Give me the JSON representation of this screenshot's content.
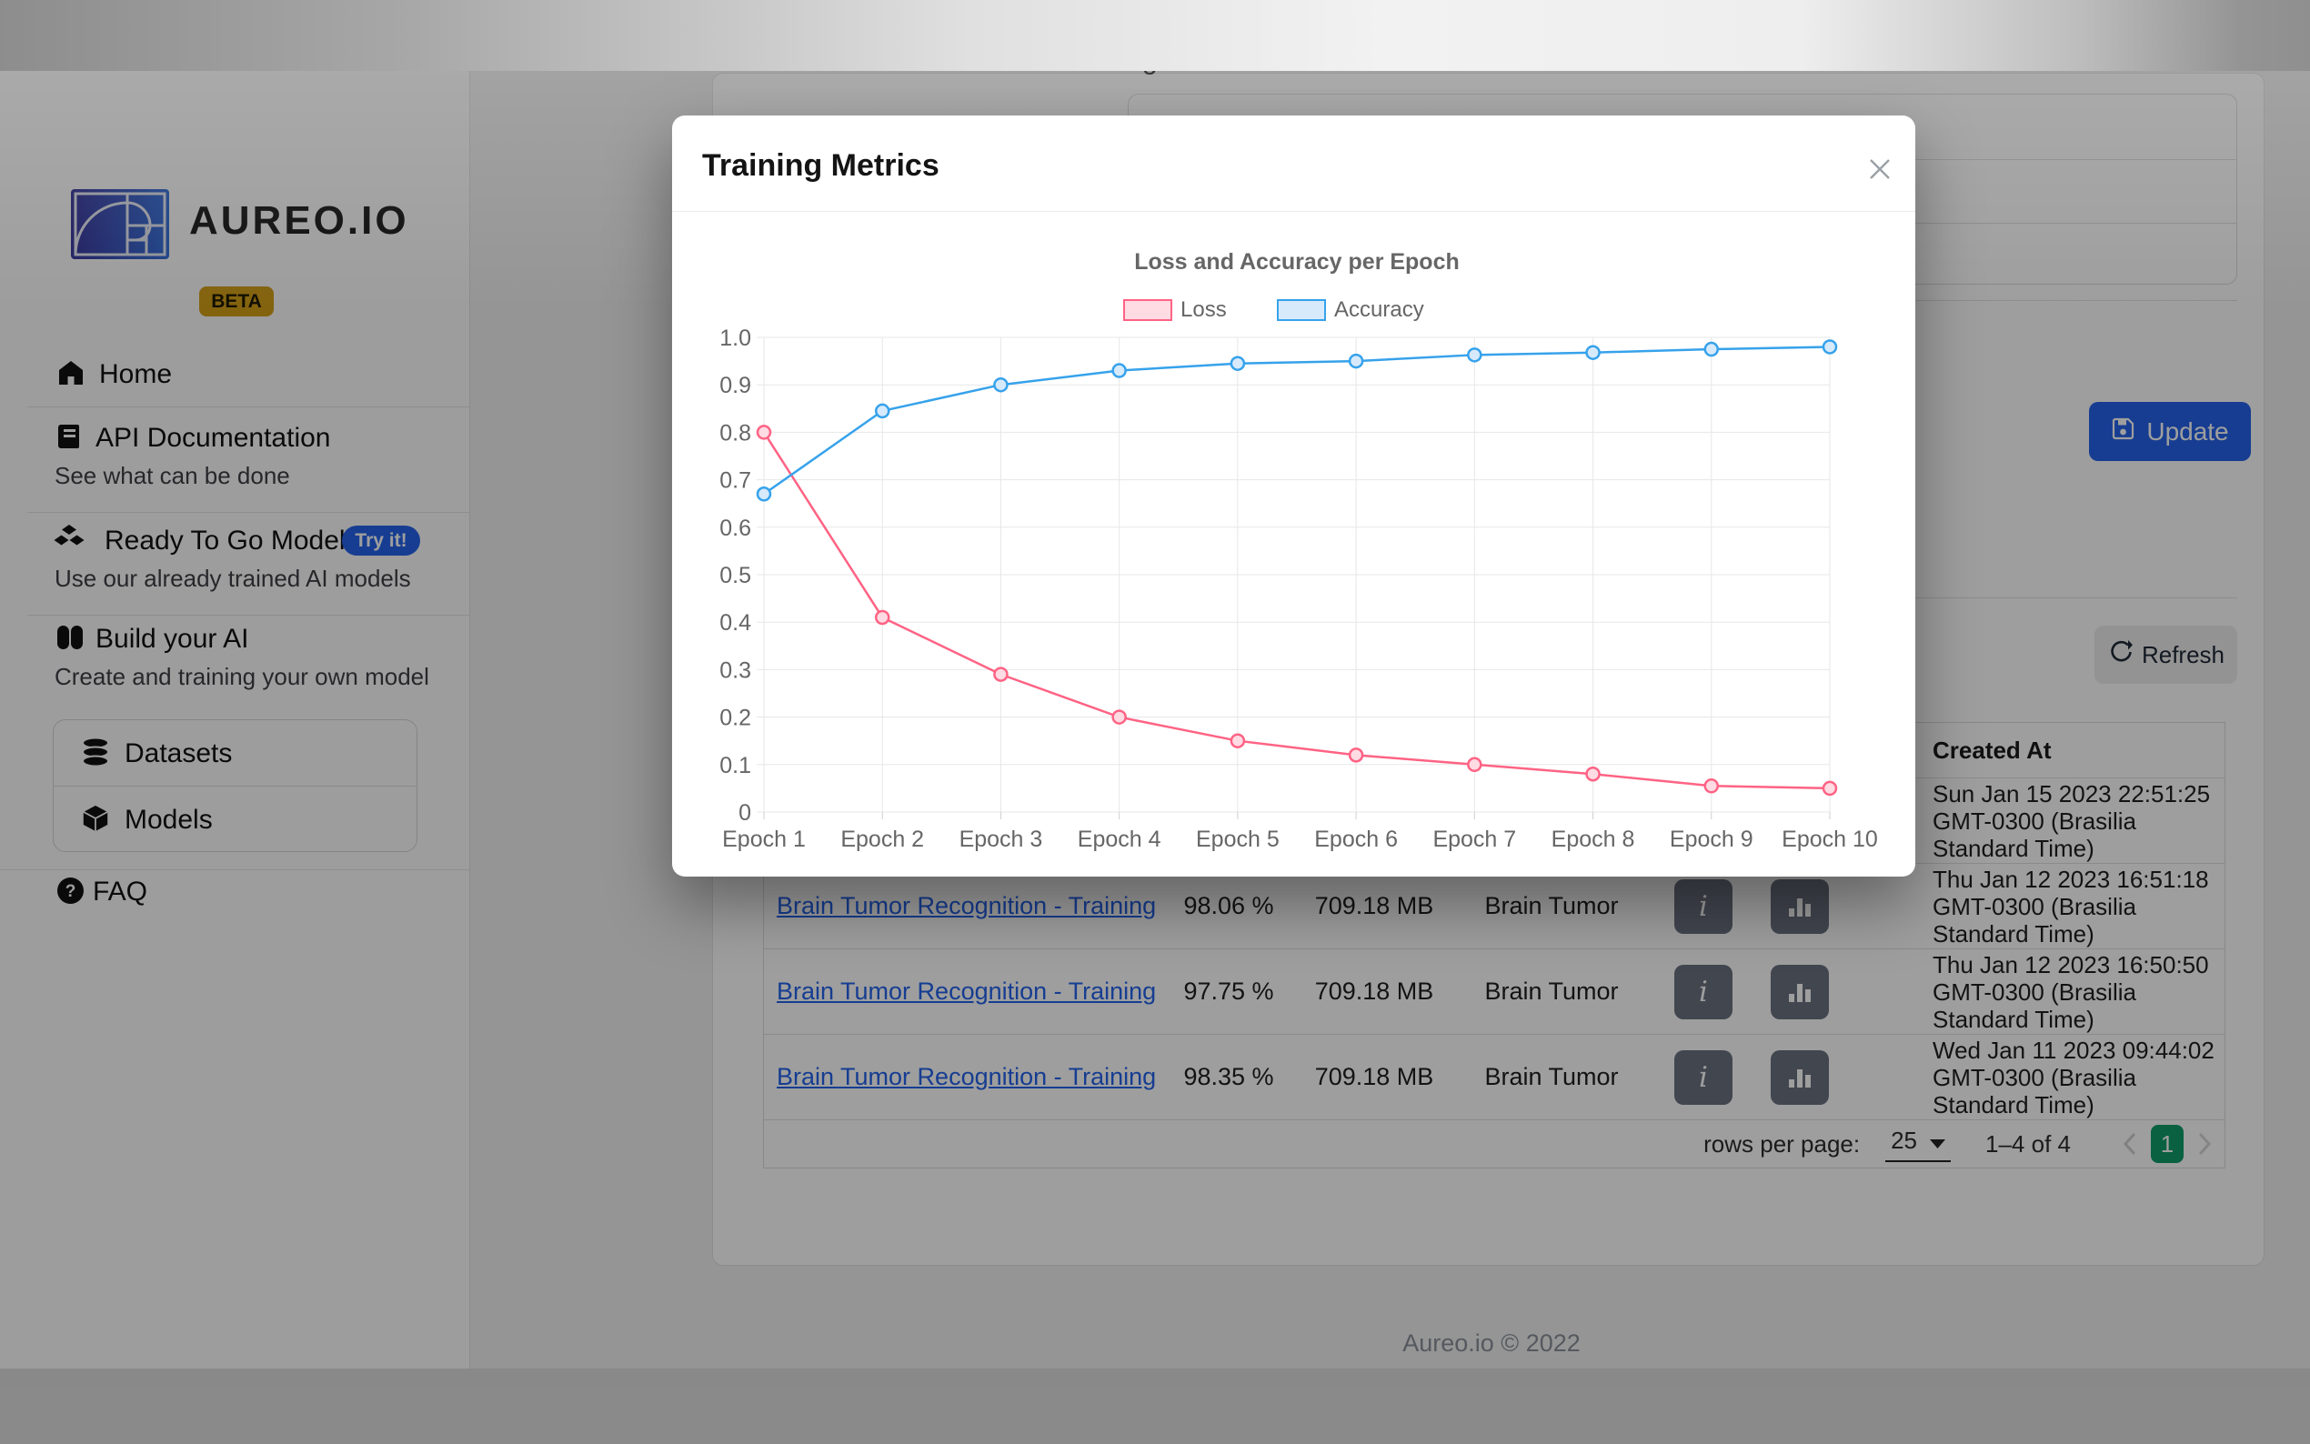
{
  "app": {
    "brand": "AUREO.IO",
    "beta": "BETA",
    "footer": "Aureo.io © 2022",
    "background_fragment": "g"
  },
  "colors": {
    "primary_blue": "#2563eb",
    "badge_yellow": "#d4a017",
    "page_green": "#0f9d6a",
    "link_blue": "#2563eb",
    "button_gray": "#6b7280"
  },
  "sidebar": {
    "items": [
      {
        "label": "Home"
      },
      {
        "label": "API Documentation",
        "subtitle": "See what can be done"
      },
      {
        "label": "Ready To Go Models",
        "badge": "Try it!",
        "subtitle": "Use our already trained AI models"
      },
      {
        "label": "Build your AI",
        "subtitle": "Create and training your own model"
      }
    ],
    "box_items": [
      {
        "label": "Datasets"
      },
      {
        "label": "Models"
      }
    ],
    "faq_label": "FAQ"
  },
  "actions": {
    "update_label": "Update",
    "refresh_label": "Refresh"
  },
  "modal": {
    "title": "Training Metrics"
  },
  "chart_data": {
    "type": "line",
    "title": "Loss and Accuracy per Epoch",
    "categories": [
      "Epoch 1",
      "Epoch 2",
      "Epoch 3",
      "Epoch 4",
      "Epoch 5",
      "Epoch 6",
      "Epoch 7",
      "Epoch 8",
      "Epoch 9",
      "Epoch 10"
    ],
    "series": [
      {
        "name": "Loss",
        "color": "#ff6384",
        "fill": "#ffdbe4",
        "values": [
          0.8,
          0.41,
          0.29,
          0.2,
          0.15,
          0.12,
          0.1,
          0.08,
          0.055,
          0.05
        ]
      },
      {
        "name": "Accuracy",
        "color": "#36a2eb",
        "fill": "#d7eafb",
        "values": [
          0.67,
          0.845,
          0.9,
          0.93,
          0.945,
          0.95,
          0.963,
          0.968,
          0.975,
          0.98
        ]
      }
    ],
    "xlabel": "",
    "ylabel": "",
    "ylim": [
      0,
      1.0
    ],
    "ytick_step": 0.1,
    "grid": true,
    "legend_position": "top"
  },
  "table": {
    "created_at_header": "Created At",
    "rows": [
      {
        "name": "",
        "accuracy": "",
        "size": "",
        "category": "",
        "created_at": "Sun Jan 15 2023 22:51:25 GMT-0300 (Brasilia Standard Time)"
      },
      {
        "name": "Brain Tumor Recognition - Training",
        "accuracy": "98.06 %",
        "size": "709.18 MB",
        "category": "Brain Tumor",
        "created_at": "Thu Jan 12 2023 16:51:18 GMT-0300 (Brasilia Standard Time)"
      },
      {
        "name": "Brain Tumor Recognition - Training",
        "accuracy": "97.75 %",
        "size": "709.18 MB",
        "category": "Brain Tumor",
        "created_at": "Thu Jan 12 2023 16:50:50 GMT-0300 (Brasilia Standard Time)"
      },
      {
        "name": "Brain Tumor Recognition - Training",
        "accuracy": "98.35 %",
        "size": "709.18 MB",
        "category": "Brain Tumor",
        "created_at": "Wed Jan 11 2023 09:44:02 GMT-0300 (Brasilia Standard Time)"
      }
    ],
    "pagination": {
      "rows_per_page_label": "rows per page:",
      "rows_per_page_value": "25",
      "range_label": "1–4 of 4",
      "current_page": "1"
    }
  }
}
